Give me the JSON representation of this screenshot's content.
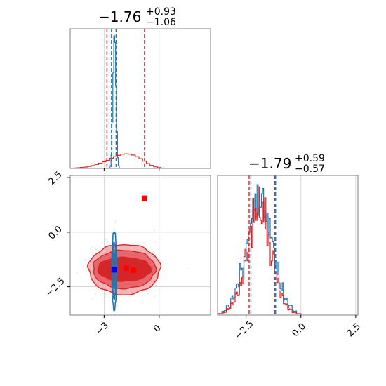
{
  "colors": {
    "blue": "#1f77b4",
    "red": "#d62728",
    "marker_red": "#ff0000",
    "marker_blue": "#0000ff",
    "grid": "#cfcfcf",
    "contour_fill_inner": "#d62728",
    "contour_fill_mid": "#e8666b",
    "contour_fill_outer": "#f4b3b5"
  },
  "chart_data": {
    "type": "corner",
    "grid": true,
    "panels": {
      "hist_top": {
        "title": {
          "main": "−1.76",
          "sup": "+0.93",
          "sub": "−1.06"
        },
        "xlim": [
          -4.85,
          2.8
        ],
        "dashed_lines": {
          "red": [
            -2.85,
            -0.8
          ],
          "blue": [
            -2.6,
            -2.35
          ]
        },
        "series": [
          {
            "name": "",
            "color": "blue",
            "bins_x": [
              -2.65,
              -2.6,
              -2.55,
              -2.5,
              -2.45,
              -2.4,
              -2.35,
              -2.3,
              -2.25,
              -2.2
            ],
            "density": [
              0.02,
              0.1,
              0.35,
              0.72,
              1.0,
              0.95,
              0.62,
              0.28,
              0.08,
              0.02
            ]
          },
          {
            "name": "",
            "color": "red",
            "bins_x": [
              -4.6,
              -4.4,
              -4.2,
              -4.0,
              -3.8,
              -3.6,
              -3.4,
              -3.2,
              -3.0,
              -2.8,
              -2.6,
              -2.4,
              -2.2,
              -2.0,
              -1.8,
              -1.6,
              -1.4,
              -1.2,
              -1.0,
              -0.8,
              -0.6,
              -0.4,
              -0.2,
              0.0,
              0.2
            ],
            "density": [
              0.002,
              0.003,
              0.005,
              0.007,
              0.01,
              0.014,
              0.02,
              0.026,
              0.033,
              0.04,
              0.05,
              0.058,
              0.065,
              0.07,
              0.072,
              0.07,
              0.066,
              0.058,
              0.048,
              0.036,
              0.024,
              0.015,
              0.008,
              0.004,
              0.002
            ]
          }
        ]
      },
      "scatter": {
        "xlim": [
          -4.85,
          2.8
        ],
        "ylim": [
          -3.8,
          2.6
        ],
        "xticks": [
          -3,
          0
        ],
        "yticks": [
          2.5,
          0.0,
          -2.5
        ],
        "ytick_labels": [
          "2.5",
          "0.0",
          "−2.5"
        ],
        "xtick_labels": [
          "−3",
          "0"
        ],
        "red_markers": [
          {
            "x": -0.8,
            "y": 1.55
          },
          {
            "x": -1.8,
            "y": -1.65
          },
          {
            "x": -1.4,
            "y": -1.75
          }
        ],
        "blue_marker": {
          "x": -2.45,
          "y": -1.72
        },
        "red_contours": {
          "center": [
            -1.9,
            -1.7
          ],
          "levels": [
            {
              "rx": 1.95,
              "ry": 1.15
            },
            {
              "rx": 1.7,
              "ry": 0.88
            },
            {
              "rx": 1.45,
              "ry": 0.55
            }
          ]
        },
        "blue_contours": {
          "center": [
            -2.45,
            -1.75
          ],
          "levels": [
            {
              "rx": 0.13,
              "ry": 1.8
            },
            {
              "rx": 0.09,
              "ry": 1.3
            },
            {
              "rx": 0.05,
              "ry": 0.8
            }
          ]
        }
      },
      "hist_right": {
        "title": {
          "main": "−1.79",
          "sup": "+0.59",
          "sub": "−0.57"
        },
        "xlim": [
          -3.8,
          2.6
        ],
        "xticks": [
          -2.5,
          0.0,
          2.5
        ],
        "xtick_labels": [
          "−2.5",
          "0.0",
          "2.5"
        ],
        "dashed_lines": {
          "red": [
            -2.36,
            -1.2
          ],
          "blue": [
            -2.33,
            -1.2
          ]
        },
        "series": [
          {
            "name": "",
            "color": "blue",
            "bins_x": [
              -3.7,
              -3.5,
              -3.3,
              -3.1,
              -2.9,
              -2.7,
              -2.5,
              -2.3,
              -2.1,
              -1.9,
              -1.7,
              -1.5,
              -1.3,
              -1.1,
              -0.9,
              -0.7,
              -0.5,
              -0.3,
              -0.1
            ],
            "density": [
              0.01,
              0.03,
              0.06,
              0.12,
              0.2,
              0.32,
              0.45,
              0.6,
              0.72,
              0.78,
              0.75,
              0.62,
              0.48,
              0.33,
              0.2,
              0.11,
              0.06,
              0.03,
              0.01
            ]
          },
          {
            "name": "",
            "color": "red",
            "bins_x": [
              -3.7,
              -3.5,
              -3.3,
              -3.1,
              -2.9,
              -2.7,
              -2.5,
              -2.3,
              -2.1,
              -1.9,
              -1.7,
              -1.5,
              -1.3,
              -1.1,
              -0.9,
              -0.7,
              -0.5,
              -0.3,
              -0.1
            ],
            "density": [
              0.01,
              0.02,
              0.05,
              0.1,
              0.18,
              0.3,
              0.48,
              0.68,
              0.85,
              0.95,
              0.88,
              0.7,
              0.5,
              0.32,
              0.18,
              0.09,
              0.05,
              0.02,
              0.01
            ]
          }
        ]
      }
    }
  }
}
